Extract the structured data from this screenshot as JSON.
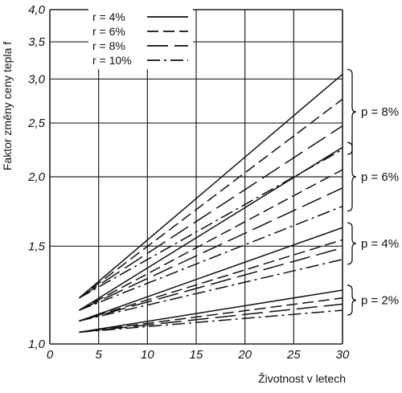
{
  "chart_data": {
    "type": "line",
    "xlabel": "Životnost v letech",
    "ylabel": "Faktor změny ceny tepla f",
    "xlim": [
      0,
      30
    ],
    "ylim": [
      1.0,
      4.0
    ],
    "yscale": "log",
    "grid": true,
    "x_ticks": [
      0,
      5,
      10,
      15,
      20,
      25,
      30
    ],
    "x_tick_labels": [
      "0",
      "5",
      "10",
      "15",
      "20",
      "25",
      "30"
    ],
    "y_ticks": [
      1.0,
      1.5,
      2.0,
      2.5,
      3.0,
      3.5,
      4.0
    ],
    "y_tick_labels": [
      "1,0",
      "1,5",
      "2,0",
      "2,5",
      "3,0",
      "3,5",
      "4,0"
    ],
    "legend": {
      "placement": "top-left",
      "entries": [
        {
          "label": "r =   4%",
          "style": "solid"
        },
        {
          "label": "r =   6%",
          "style": "dashed"
        },
        {
          "label": "r =   8%",
          "style": "longdash"
        },
        {
          "label": "r = 10%",
          "style": "dashdot"
        }
      ]
    },
    "groups": [
      {
        "label": "p = 8%",
        "values_at_x3": [
          1.21,
          1.21,
          1.21,
          1.21
        ],
        "values_at_x30": [
          3.06,
          2.76,
          2.47,
          2.24
        ]
      },
      {
        "label": "p = 6%",
        "values_at_x3": [
          1.15,
          1.15,
          1.15,
          1.15
        ],
        "values_at_x30": [
          2.26,
          2.06,
          1.91,
          1.77
        ]
      },
      {
        "label": "p = 4%",
        "values_at_x3": [
          1.1,
          1.1,
          1.1,
          1.1
        ],
        "values_at_x30": [
          1.62,
          1.54,
          1.49,
          1.42
        ]
      },
      {
        "label": "p = 2%",
        "values_at_x3": [
          1.05,
          1.05,
          1.05,
          1.05
        ],
        "values_at_x30": [
          1.25,
          1.21,
          1.18,
          1.15
        ]
      }
    ],
    "series": [
      {
        "group": 0,
        "style": "solid",
        "x": [
          3,
          30
        ],
        "y": [
          1.21,
          3.06
        ]
      },
      {
        "group": 0,
        "style": "dashed",
        "x": [
          3,
          30
        ],
        "y": [
          1.21,
          2.76
        ]
      },
      {
        "group": 0,
        "style": "longdash",
        "x": [
          3,
          30
        ],
        "y": [
          1.21,
          2.47
        ]
      },
      {
        "group": 0,
        "style": "dashdot",
        "x": [
          3,
          30
        ],
        "y": [
          1.21,
          2.24
        ]
      },
      {
        "group": 1,
        "style": "solid",
        "x": [
          3,
          30
        ],
        "y": [
          1.15,
          2.26
        ]
      },
      {
        "group": 1,
        "style": "dashed",
        "x": [
          3,
          30
        ],
        "y": [
          1.15,
          2.06
        ]
      },
      {
        "group": 1,
        "style": "longdash",
        "x": [
          3,
          30
        ],
        "y": [
          1.15,
          1.91
        ]
      },
      {
        "group": 1,
        "style": "dashdot",
        "x": [
          3,
          30
        ],
        "y": [
          1.15,
          1.77
        ]
      },
      {
        "group": 2,
        "style": "solid",
        "x": [
          3,
          30
        ],
        "y": [
          1.1,
          1.62
        ]
      },
      {
        "group": 2,
        "style": "dashed",
        "x": [
          3,
          30
        ],
        "y": [
          1.1,
          1.54
        ]
      },
      {
        "group": 2,
        "style": "longdash",
        "x": [
          3,
          30
        ],
        "y": [
          1.1,
          1.49
        ]
      },
      {
        "group": 2,
        "style": "dashdot",
        "x": [
          3,
          30
        ],
        "y": [
          1.1,
          1.42
        ]
      },
      {
        "group": 3,
        "style": "solid",
        "x": [
          3,
          30
        ],
        "y": [
          1.05,
          1.25
        ]
      },
      {
        "group": 3,
        "style": "dashed",
        "x": [
          3,
          30
        ],
        "y": [
          1.05,
          1.21
        ]
      },
      {
        "group": 3,
        "style": "longdash",
        "x": [
          3,
          30
        ],
        "y": [
          1.05,
          1.18
        ]
      },
      {
        "group": 3,
        "style": "dashdot",
        "x": [
          3,
          30
        ],
        "y": [
          1.05,
          1.15
        ]
      }
    ]
  }
}
